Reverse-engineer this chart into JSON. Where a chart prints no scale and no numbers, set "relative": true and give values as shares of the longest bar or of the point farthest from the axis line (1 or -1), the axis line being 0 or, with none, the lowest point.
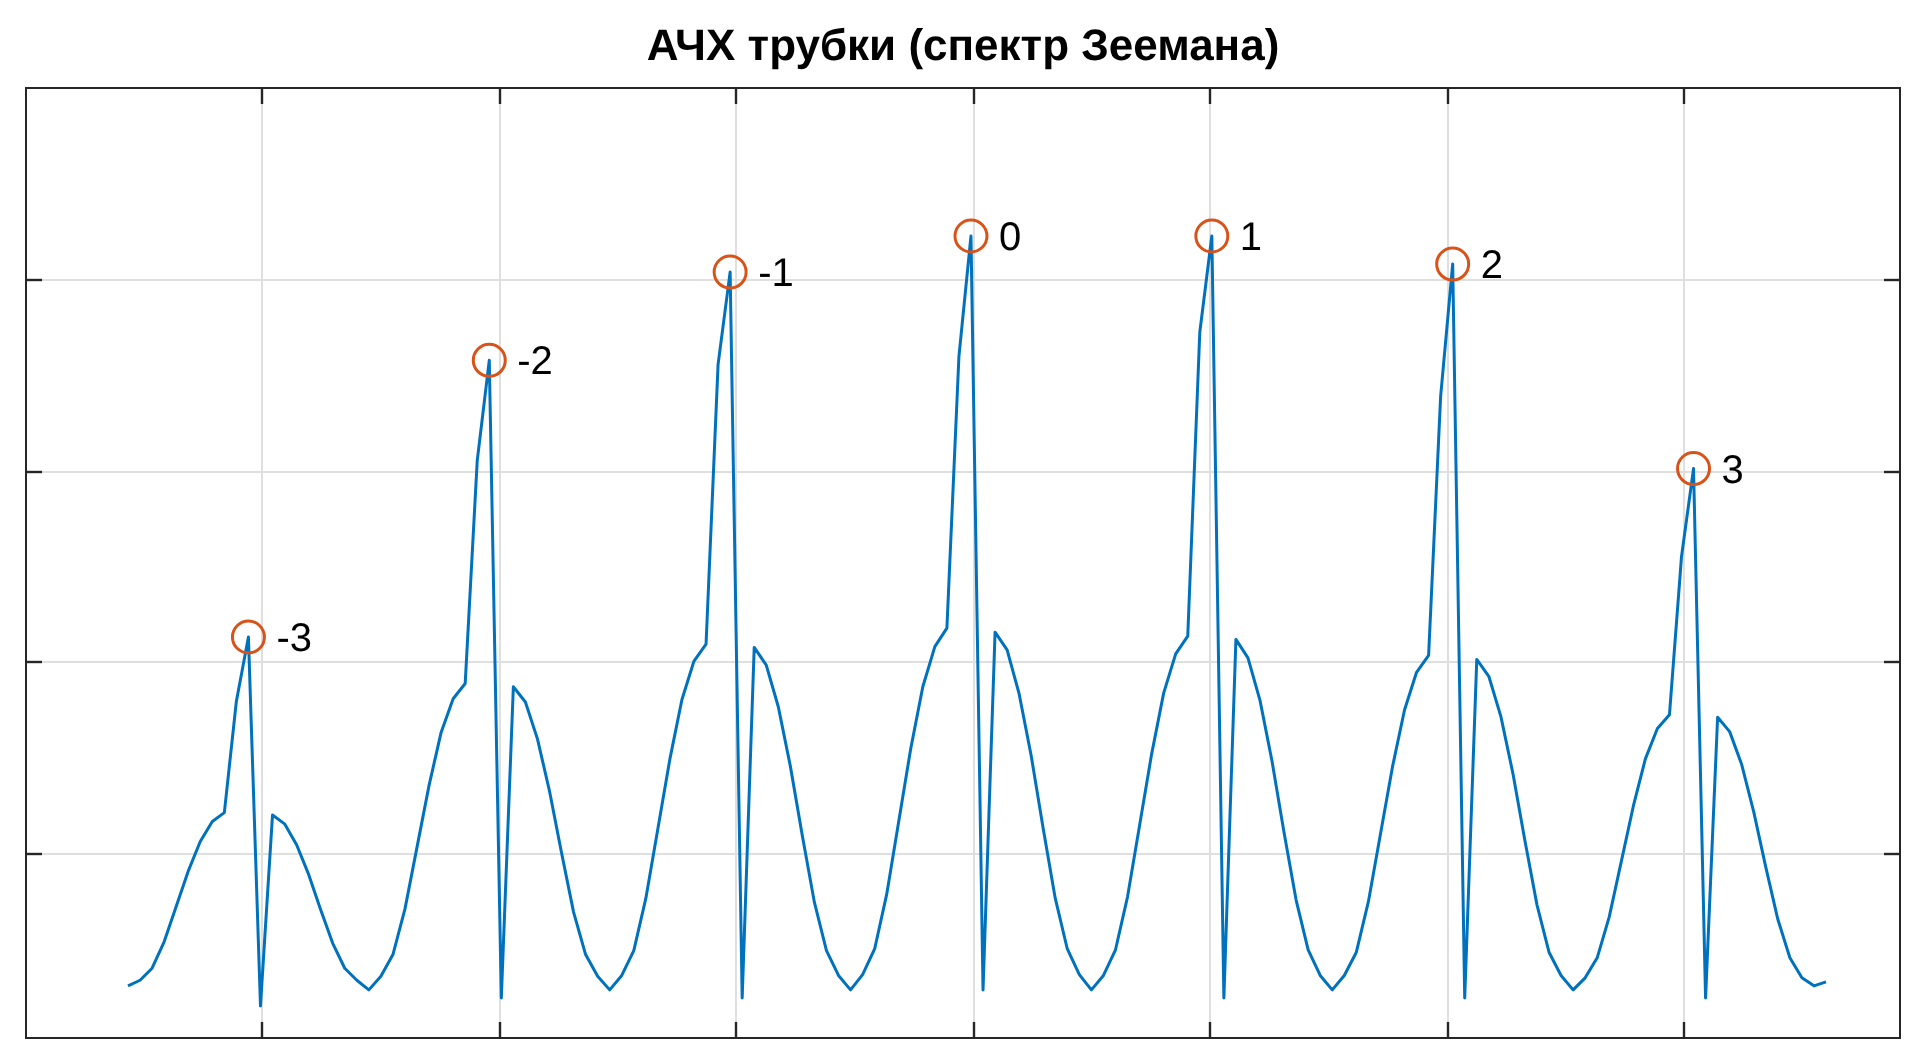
{
  "chart_data": {
    "type": "line",
    "title": "АЧХ трубки (спектр Зеемана)",
    "relative": true,
    "grid": true,
    "annotations": [
      "-3",
      "-2",
      "-1",
      "0",
      "1",
      "2",
      "3"
    ],
    "categories": [
      null,
      null,
      null,
      null,
      null,
      null,
      null,
      null,
      null,
      null,
      null,
      null,
      null,
      null,
      null,
      null,
      null,
      null,
      null,
      null,
      null,
      null,
      null,
      null,
      null,
      null,
      null,
      null,
      null,
      null,
      null,
      null,
      null,
      null,
      null,
      null,
      null,
      null,
      null,
      null,
      null,
      null,
      null,
      null,
      null,
      null,
      null,
      null,
      null,
      null,
      null,
      null,
      null,
      null,
      null,
      null,
      null,
      null,
      null,
      null,
      null,
      null,
      null,
      null,
      null,
      null,
      null,
      null,
      null,
      null,
      null,
      null,
      null,
      null,
      null,
      null,
      null,
      null,
      null,
      null,
      null,
      null,
      null,
      null,
      null,
      null,
      null,
      null,
      null,
      null,
      null,
      null,
      null,
      null,
      null,
      null,
      null,
      null,
      null,
      null,
      null,
      null,
      null,
      null,
      null,
      null,
      null,
      null,
      null,
      null,
      null,
      null,
      null,
      null,
      null,
      null,
      null,
      null,
      null,
      null,
      null,
      null,
      null,
      null,
      null,
      null,
      null,
      null,
      null,
      null,
      null,
      null,
      null,
      null,
      null,
      null,
      null,
      null,
      null,
      null,
      null,
      null
    ],
    "series": [
      {
        "color": "#0072bd",
        "line_style": "solid",
        "values": [
          0.065,
          0.072,
          0.087,
          0.12,
          0.164,
          0.208,
          0.245,
          0.27,
          0.281,
          0.42,
          0.5,
          0.04,
          0.278,
          0.267,
          0.241,
          0.204,
          0.16,
          0.118,
          0.087,
          0.072,
          0.06,
          0.077,
          0.104,
          0.161,
          0.238,
          0.315,
          0.381,
          0.423,
          0.442,
          0.72,
          0.845,
          0.05,
          0.438,
          0.419,
          0.373,
          0.308,
          0.231,
          0.157,
          0.104,
          0.077,
          0.06,
          0.078,
          0.109,
          0.174,
          0.261,
          0.348,
          0.422,
          0.47,
          0.491,
          0.84,
          0.955,
          0.05,
          0.487,
          0.465,
          0.413,
          0.339,
          0.252,
          0.169,
          0.109,
          0.078,
          0.06,
          0.079,
          0.111,
          0.179,
          0.27,
          0.361,
          0.438,
          0.488,
          0.511,
          0.85,
          1.0,
          0.06,
          0.506,
          0.484,
          0.429,
          0.352,
          0.261,
          0.174,
          0.111,
          0.079,
          0.06,
          0.078,
          0.11,
          0.176,
          0.265,
          0.354,
          0.43,
          0.479,
          0.501,
          0.88,
          1.0,
          0.05,
          0.497,
          0.474,
          0.421,
          0.345,
          0.256,
          0.172,
          0.11,
          0.078,
          0.06,
          0.078,
          0.107,
          0.17,
          0.254,
          0.338,
          0.409,
          0.456,
          0.477,
          0.8,
          0.965,
          0.05,
          0.472,
          0.451,
          0.401,
          0.33,
          0.246,
          0.166,
          0.107,
          0.078,
          0.06,
          0.075,
          0.1,
          0.151,
          0.22,
          0.289,
          0.348,
          0.386,
          0.403,
          0.6,
          0.71,
          0.05,
          0.4,
          0.382,
          0.341,
          0.282,
          0.213,
          0.148,
          0.1,
          0.075,
          0.065,
          0.07
        ]
      }
    ]
  }
}
